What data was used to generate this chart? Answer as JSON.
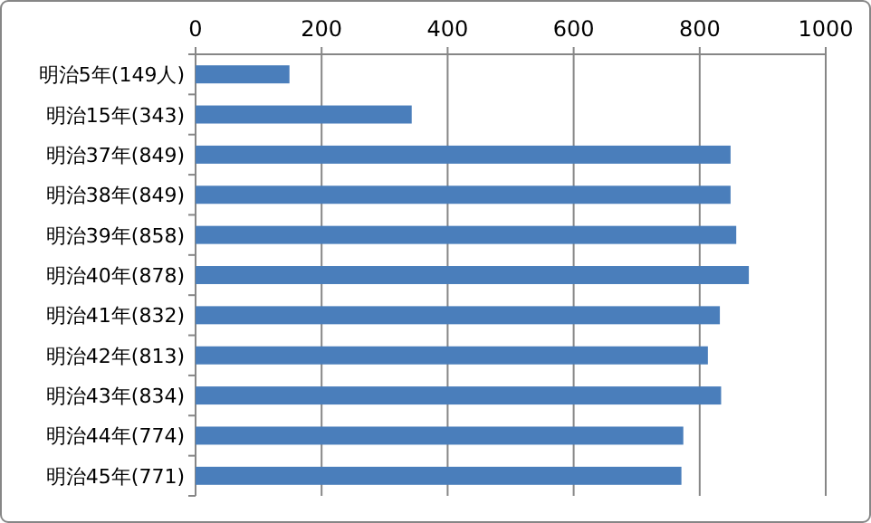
{
  "chart_data": {
    "type": "bar",
    "orientation": "horizontal",
    "categories": [
      "明治5年(149人)",
      "明治15年(343)",
      "明治37年(849)",
      "明治38年(849)",
      "明治39年(858)",
      "明治40年(878)",
      "明治41年(832)",
      "明治42年(813)",
      "明治43年(834)",
      "明治44年(774)",
      "明治45年(771)"
    ],
    "values": [
      149,
      343,
      849,
      849,
      858,
      878,
      832,
      813,
      834,
      774,
      771
    ],
    "color": "#4a7ebb",
    "xlim": [
      0,
      1000
    ],
    "xticks": [
      0,
      200,
      400,
      600,
      800,
      1000
    ],
    "grid": "x"
  }
}
